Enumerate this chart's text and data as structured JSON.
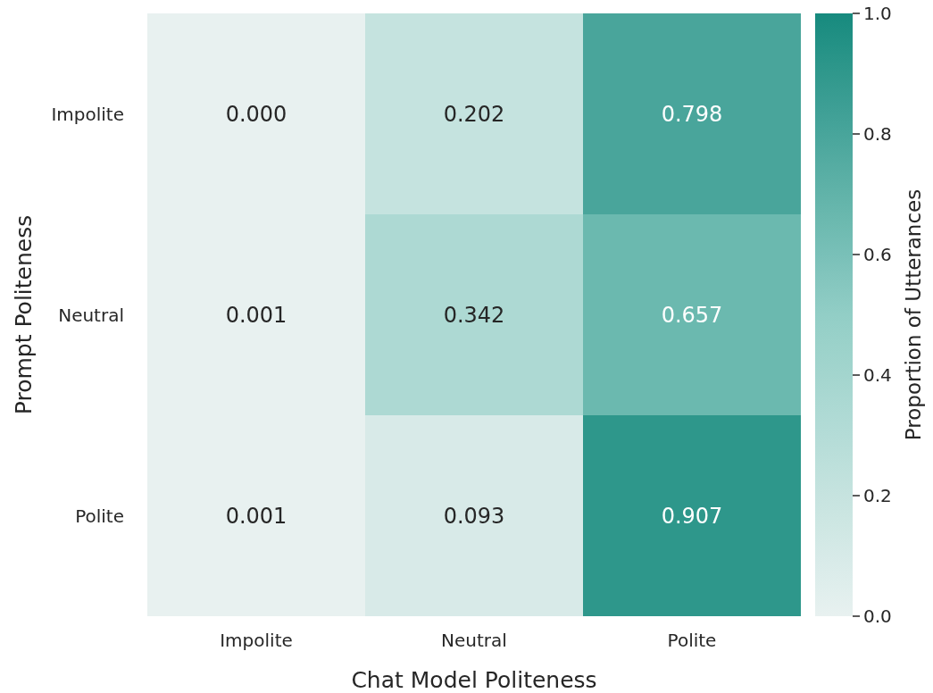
{
  "chart_data": {
    "type": "heatmap",
    "xlabel": "Chat Model Politeness",
    "ylabel": "Prompt Politeness",
    "clabel": "Proportion of Utterances",
    "categories": [
      "Impolite",
      "Neutral",
      "Polite"
    ],
    "y_categories": [
      "Impolite",
      "Neutral",
      "Polite"
    ],
    "cells": [
      [
        0,
        0.202,
        0.798
      ],
      [
        0.001,
        0.342,
        0.657
      ],
      [
        0.001,
        0.093,
        0.907
      ]
    ],
    "cell_labels": [
      [
        "0.000",
        "0.202",
        "0.798"
      ],
      [
        "0.001",
        "0.342",
        "0.657"
      ],
      [
        "0.001",
        "0.093",
        "0.907"
      ]
    ],
    "clim": [
      0,
      1
    ],
    "cticks": [
      {
        "value": 0,
        "label": "0.0"
      },
      {
        "value": 0.2,
        "label": "0.2"
      },
      {
        "value": 0.4,
        "label": "0.4"
      },
      {
        "value": 0.6,
        "label": "0.6"
      },
      {
        "value": 0.8,
        "label": "0.8"
      },
      {
        "value": 1,
        "label": "1.0"
      }
    ]
  }
}
